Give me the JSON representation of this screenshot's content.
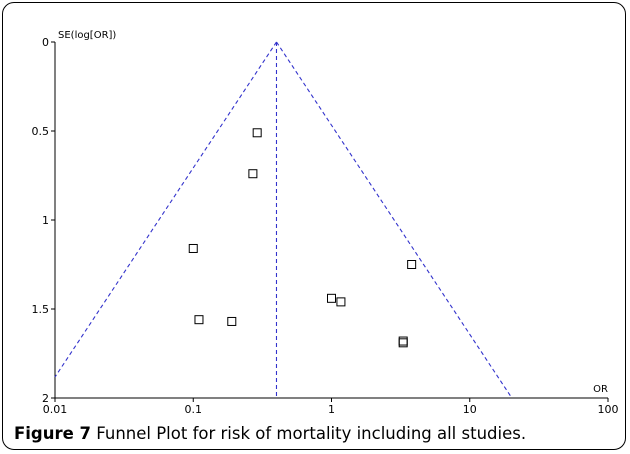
{
  "chart_data": {
    "type": "scatter",
    "xlabel": "OR",
    "ylabel": "SE(log[OR])",
    "x_scale": "log",
    "xlim": [
      0.01,
      100
    ],
    "ylim": [
      0,
      2
    ],
    "y_axis_inverted": true,
    "x_ticks": [
      "0.01",
      "0.1",
      "1",
      "10",
      "100"
    ],
    "y_ticks": [
      "0",
      "0.5",
      "1",
      "1.5",
      "2"
    ],
    "grid": false,
    "pooled_or": 0.4,
    "funnel_apex": [
      0.4,
      0
    ],
    "points": [
      {
        "x": 0.29,
        "y": 0.51
      },
      {
        "x": 0.27,
        "y": 0.74
      },
      {
        "x": 0.1,
        "y": 1.16
      },
      {
        "x": 0.11,
        "y": 1.56
      },
      {
        "x": 0.19,
        "y": 1.57
      },
      {
        "x": 1.0,
        "y": 1.44
      },
      {
        "x": 1.17,
        "y": 1.46
      },
      {
        "x": 3.8,
        "y": 1.25
      },
      {
        "x": 3.3,
        "y": 1.68
      },
      {
        "x": 3.3,
        "y": 1.69
      }
    ],
    "colors": {
      "funnel": "#3333cc",
      "points": "#000000"
    }
  },
  "caption": {
    "number": "Figure 7",
    "text": " Funnel Plot for risk of mortality including all studies."
  }
}
